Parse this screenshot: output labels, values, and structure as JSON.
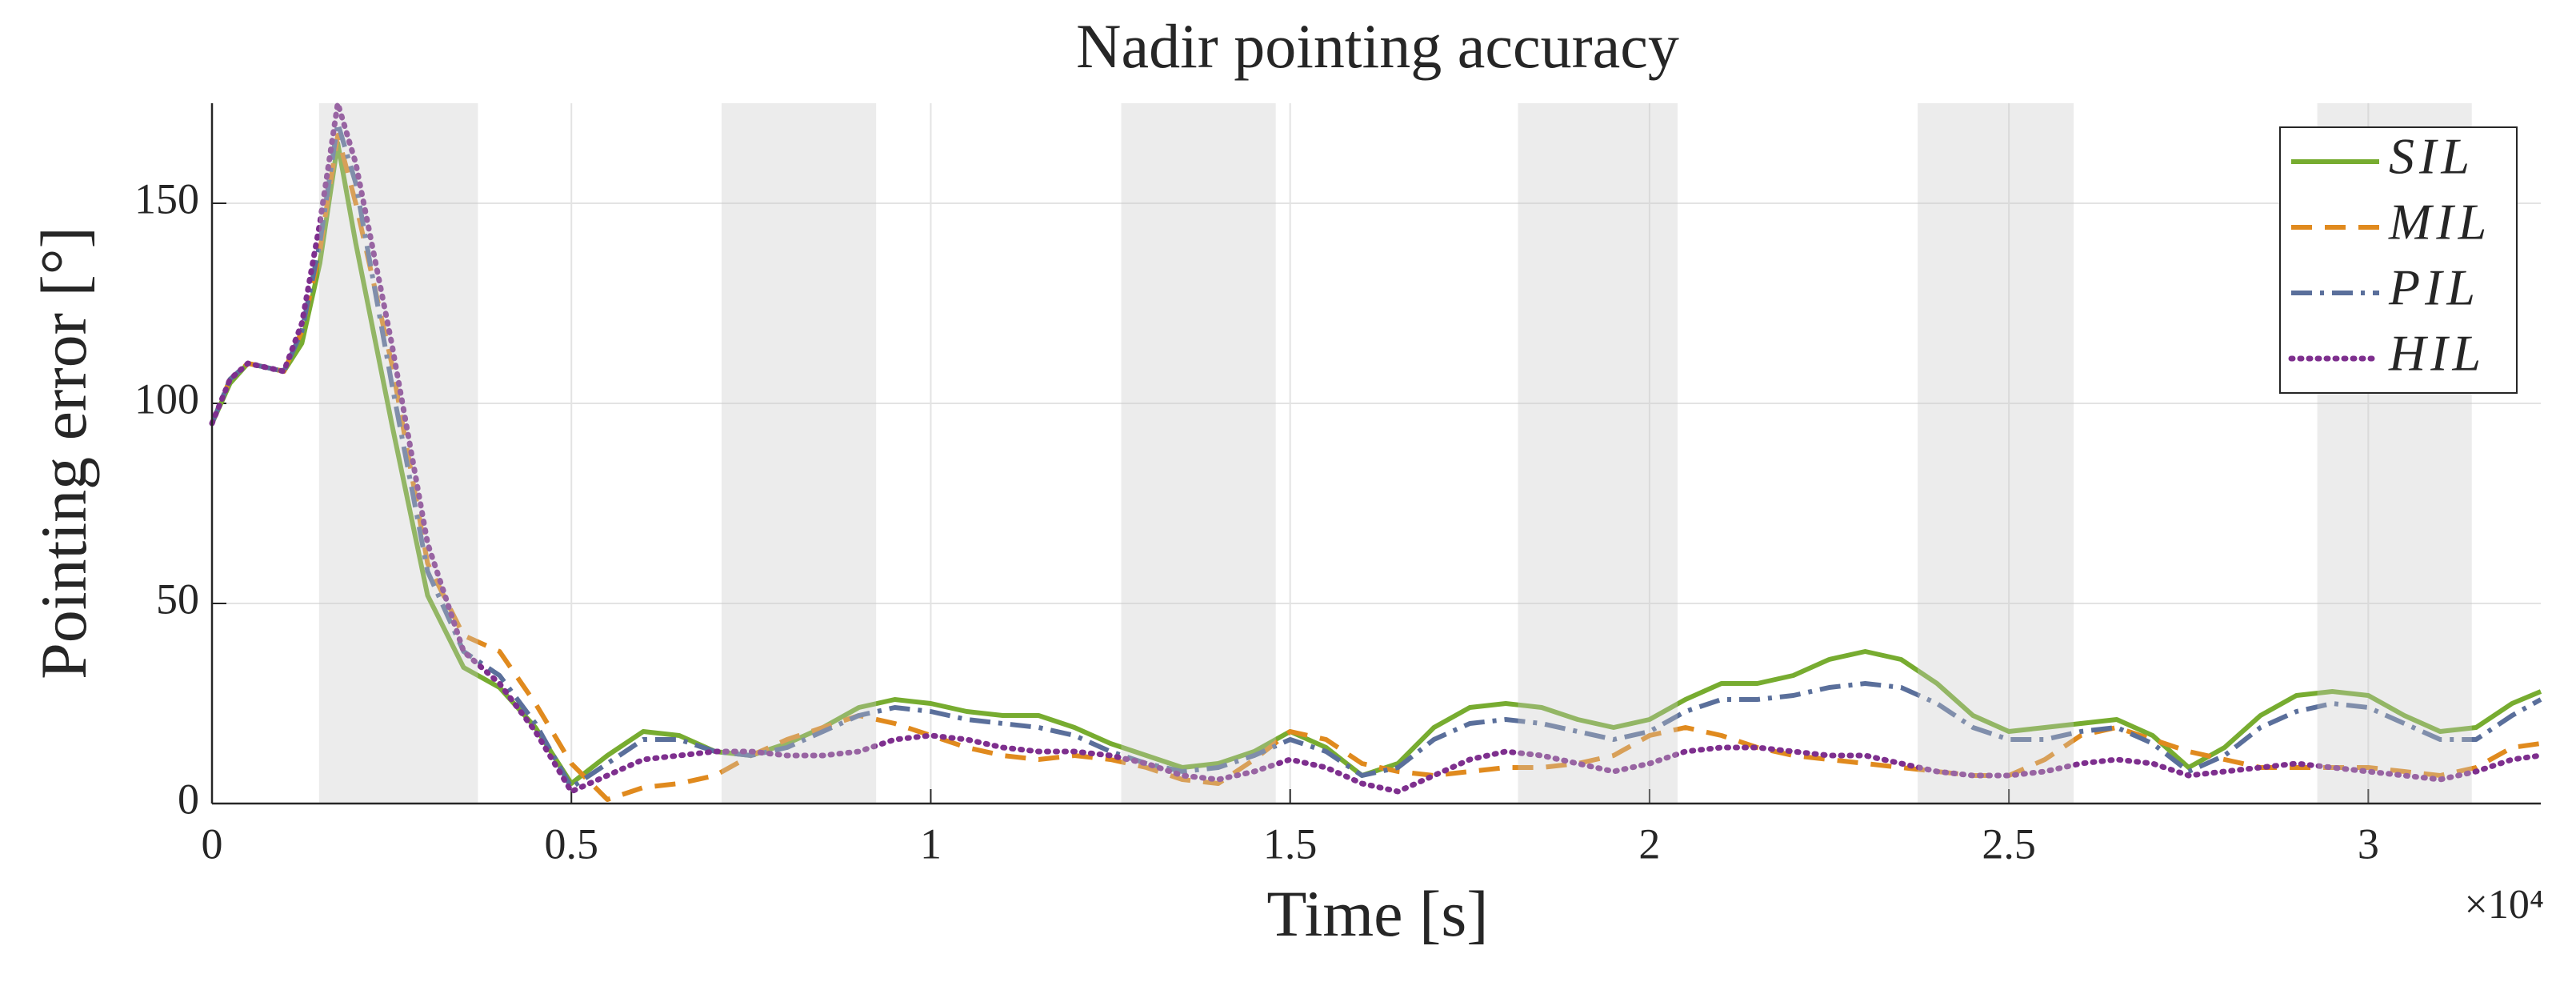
{
  "chart_data": {
    "type": "line",
    "title": "Nadir pointing accuracy",
    "x_label": "Time [s]",
    "y_label": "Pointing error [°]",
    "x_exponent_label": "×10⁴",
    "x": [
      0,
      250,
      500,
      750,
      1000,
      1250,
      1500,
      1750,
      2000,
      2500,
      3000,
      3500,
      4000,
      4500,
      5000,
      5500,
      6000,
      6500,
      7000,
      7500,
      8000,
      8500,
      9000,
      9500,
      10000,
      10500,
      11000,
      11500,
      12000,
      12500,
      13000,
      13500,
      14000,
      14500,
      15000,
      15500,
      16000,
      16500,
      17000,
      17500,
      18000,
      18500,
      19000,
      19500,
      20000,
      20500,
      21000,
      21500,
      22000,
      22500,
      23000,
      23500,
      24000,
      24500,
      25000,
      25500,
      26000,
      26500,
      27000,
      27500,
      28000,
      28500,
      29000,
      29500,
      30000,
      30500,
      31000,
      31500,
      32000,
      32400
    ],
    "series": [
      {
        "name": "SIL",
        "color": "#77ac30",
        "dash": "solid",
        "values": [
          95,
          105,
          110,
          109,
          108,
          115,
          135,
          165,
          140,
          95,
          52,
          34,
          29,
          19,
          5,
          12,
          18,
          17,
          13,
          12,
          15,
          19,
          24,
          26,
          25,
          23,
          22,
          22,
          19,
          15,
          12,
          9,
          10,
          13,
          18,
          14,
          7,
          10,
          19,
          24,
          25,
          24,
          21,
          19,
          21,
          26,
          30,
          30,
          32,
          36,
          38,
          36,
          30,
          22,
          18,
          19,
          20,
          21,
          17,
          9,
          14,
          22,
          27,
          28,
          27,
          22,
          18,
          19,
          25,
          28
        ]
      },
      {
        "name": "MIL",
        "color": "#e08a1e",
        "dash": "dashed",
        "values": [
          95,
          106,
          110,
          109,
          108,
          118,
          138,
          167,
          150,
          110,
          60,
          42,
          38,
          25,
          10,
          1,
          4,
          5,
          7,
          12,
          16,
          19,
          22,
          20,
          17,
          14,
          12,
          11,
          12,
          11,
          9,
          6,
          5,
          11,
          18,
          16,
          10,
          8,
          7,
          8,
          9,
          9,
          10,
          12,
          17,
          19,
          17,
          14,
          12,
          11,
          10,
          9,
          8,
          7,
          7,
          11,
          17,
          19,
          16,
          13,
          11,
          9,
          9,
          9,
          9,
          8,
          7,
          9,
          14,
          15
        ]
      },
      {
        "name": "PIL",
        "color": "#5a6f9b",
        "dash": "dashdot",
        "values": [
          95,
          106,
          110,
          109,
          108,
          118,
          140,
          170,
          155,
          105,
          58,
          38,
          32,
          20,
          4,
          10,
          16,
          16,
          13,
          12,
          14,
          18,
          22,
          24,
          23,
          21,
          20,
          19,
          17,
          13,
          10,
          8,
          9,
          12,
          16,
          13,
          7,
          9,
          16,
          20,
          21,
          20,
          18,
          16,
          18,
          23,
          26,
          26,
          27,
          29,
          30,
          29,
          25,
          19,
          16,
          16,
          18,
          19,
          15,
          8,
          12,
          19,
          23,
          25,
          24,
          20,
          16,
          16,
          22,
          26
        ]
      },
      {
        "name": "HIL",
        "color": "#7e2f8e",
        "dash": "dotted",
        "values": [
          95,
          106,
          110,
          109,
          108,
          120,
          145,
          175,
          160,
          115,
          65,
          38,
          30,
          18,
          3,
          7,
          11,
          12,
          13,
          13,
          12,
          12,
          13,
          16,
          17,
          16,
          14,
          13,
          13,
          12,
          10,
          7,
          6,
          8,
          11,
          9,
          5,
          3,
          7,
          11,
          13,
          12,
          10,
          8,
          10,
          13,
          14,
          14,
          13,
          12,
          12,
          10,
          8,
          7,
          7,
          8,
          10,
          11,
          10,
          7,
          8,
          9,
          10,
          9,
          8,
          7,
          6,
          8,
          11,
          12
        ]
      }
    ],
    "shaded_regions": [
      [
        1490,
        3700
      ],
      [
        7090,
        9240
      ],
      [
        12650,
        14800
      ],
      [
        18170,
        20390
      ],
      [
        23730,
        25900
      ],
      [
        29290,
        31440
      ]
    ],
    "shade_color": "#c8c8c8",
    "xlim": [
      0,
      32400
    ],
    "xticks": [
      0,
      {
        "value": 5000,
        "label": "0.5"
      },
      {
        "value": 10000,
        "label": "1"
      },
      {
        "value": 15000,
        "label": "1.5"
      },
      {
        "value": 20000,
        "label": "2"
      },
      {
        "value": 25000,
        "label": "2.5"
      },
      {
        "value": 30000,
        "label": "3"
      }
    ],
    "ylim": [
      0,
      175
    ],
    "yticks": [
      0,
      50,
      100,
      150
    ],
    "grid": true,
    "legend": "top-right"
  }
}
